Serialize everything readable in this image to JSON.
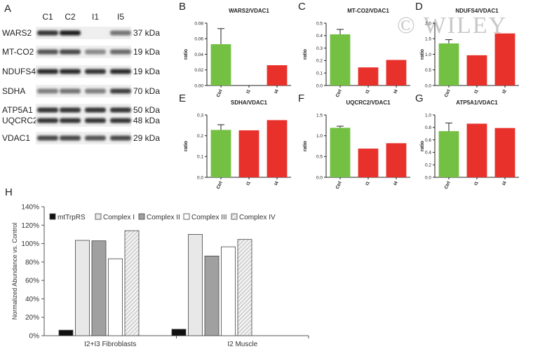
{
  "watermark": "© WILEY",
  "blot": {
    "letter": "A",
    "lanes": [
      "C1",
      "C2",
      "I1",
      "I5"
    ],
    "proteins": [
      {
        "name": "WARS2",
        "kda": "37 kDa",
        "intensity": [
          0.85,
          0.95,
          0.0,
          0.55
        ]
      },
      {
        "name": "MT-CO2",
        "kda": "19 kDa",
        "intensity": [
          0.7,
          0.75,
          0.45,
          0.6
        ]
      },
      {
        "name": "NDUFS4",
        "kda": "19 kDa",
        "intensity": [
          0.9,
          0.9,
          0.85,
          0.9
        ]
      },
      {
        "name": "SDHA",
        "kda": "70 kDa",
        "intensity": [
          0.5,
          0.55,
          0.5,
          0.8
        ]
      },
      {
        "name": "ATP5A1",
        "kda": "50 kDa",
        "intensity": [
          0.85,
          0.85,
          0.85,
          0.85
        ]
      },
      {
        "name": "UQCRC2",
        "kda": "48 kDa",
        "intensity": [
          0.85,
          0.85,
          0.85,
          0.85
        ]
      },
      {
        "name": "VDAC1",
        "kda": "29 kDa",
        "intensity": [
          0.75,
          0.75,
          0.7,
          0.75
        ]
      }
    ]
  },
  "colors": {
    "green": "#74c043",
    "red": "#e8312b",
    "black": "#111111",
    "grey": "#a0a0a0",
    "light": "#e8e8e8",
    "white": "#ffffff"
  },
  "chart_data": [
    {
      "letter": "B",
      "type": "bar",
      "title": "WARS2/VDAC1",
      "ylabel": "ratio",
      "categories": [
        "Ctrl",
        "I1",
        "I4"
      ],
      "values": [
        0.053,
        0.0,
        0.026
      ],
      "errors": [
        0.02,
        0,
        0
      ],
      "ylim": [
        0,
        0.08
      ],
      "yticks": [
        "0.00",
        "0.02",
        "0.04",
        "0.06",
        "0.08"
      ],
      "colors": [
        "green",
        "red",
        "red"
      ]
    },
    {
      "letter": "C",
      "type": "bar",
      "title": "MT-CO2/VDAC1",
      "ylabel": "ratio",
      "categories": [
        "Ctrl",
        "I1",
        "I4"
      ],
      "values": [
        0.41,
        0.145,
        0.205
      ],
      "errors": [
        0.04,
        0,
        0
      ],
      "ylim": [
        0,
        0.5
      ],
      "yticks": [
        "0.0",
        "0.1",
        "0.2",
        "0.3",
        "0.4",
        "0.5"
      ],
      "colors": [
        "green",
        "red",
        "red"
      ]
    },
    {
      "letter": "D",
      "type": "bar",
      "title": "NDUFS4/VDAC1",
      "ylabel": "ratio",
      "categories": [
        "Ctrl",
        "I1",
        "I2"
      ],
      "values": [
        1.35,
        0.97,
        1.67
      ],
      "errors": [
        0.12,
        0,
        0
      ],
      "ylim": [
        0,
        2.0
      ],
      "yticks": [
        "0.0",
        "0.5",
        "1.0",
        "1.5",
        "2.0"
      ],
      "colors": [
        "green",
        "red",
        "red"
      ]
    },
    {
      "letter": "E",
      "type": "bar",
      "title": "SDHA/VDAC1",
      "ylabel": "ratio",
      "categories": [
        "Ctrl",
        "I1",
        "I4"
      ],
      "values": [
        0.228,
        0.226,
        0.275
      ],
      "errors": [
        0.025,
        0,
        0
      ],
      "ylim": [
        0,
        0.3
      ],
      "yticks": [
        "0.0",
        "0.1",
        "0.2",
        "0.3"
      ],
      "colors": [
        "green",
        "red",
        "red"
      ]
    },
    {
      "letter": "F",
      "type": "bar",
      "title": "UQCRC2/VDAC1",
      "ylabel": "ratio",
      "categories": [
        "Ctrl",
        "I1",
        "I4"
      ],
      "values": [
        1.19,
        0.69,
        0.82
      ],
      "errors": [
        0.04,
        0,
        0
      ],
      "ylim": [
        0,
        1.5
      ],
      "yticks": [
        "0.0",
        "0.5",
        "1.0",
        "1.5"
      ],
      "colors": [
        "green",
        "red",
        "red"
      ]
    },
    {
      "letter": "G",
      "type": "bar",
      "title": "ATP5A1/VDAC1",
      "ylabel": "ratio",
      "categories": [
        "Ctrl",
        "I1",
        "I4"
      ],
      "values": [
        0.74,
        0.86,
        0.79
      ],
      "errors": [
        0.13,
        0,
        0
      ],
      "ylim": [
        0,
        1.0
      ],
      "yticks": [
        "0.0",
        "0.2",
        "0.4",
        "0.6",
        "0.8",
        "1.0"
      ],
      "colors": [
        "green",
        "red",
        "red"
      ]
    },
    {
      "letter": "H",
      "type": "bar",
      "title": "",
      "ylabel": "Normalized Abundance vs. Control",
      "categories": [
        "I2+I3 Fibroblasts",
        "I2  Muscle"
      ],
      "ylim": [
        0,
        140
      ],
      "yticks": [
        "0%",
        "20%",
        "40%",
        "60%",
        "80%",
        "100%",
        "120%",
        "140%"
      ],
      "series": [
        {
          "name": "mtTrpRS",
          "values": [
            6,
            7
          ],
          "fill": "black"
        },
        {
          "name": "Complex I",
          "values": [
            103.5,
            110
          ],
          "fill": "light"
        },
        {
          "name": "Complex II",
          "values": [
            103,
            86.5
          ],
          "fill": "grey"
        },
        {
          "name": "Complex III",
          "values": [
            83.5,
            96.5
          ],
          "fill": "white"
        },
        {
          "name": "Complex IV",
          "values": [
            114,
            104.5
          ],
          "fill": "hatch"
        }
      ]
    }
  ]
}
